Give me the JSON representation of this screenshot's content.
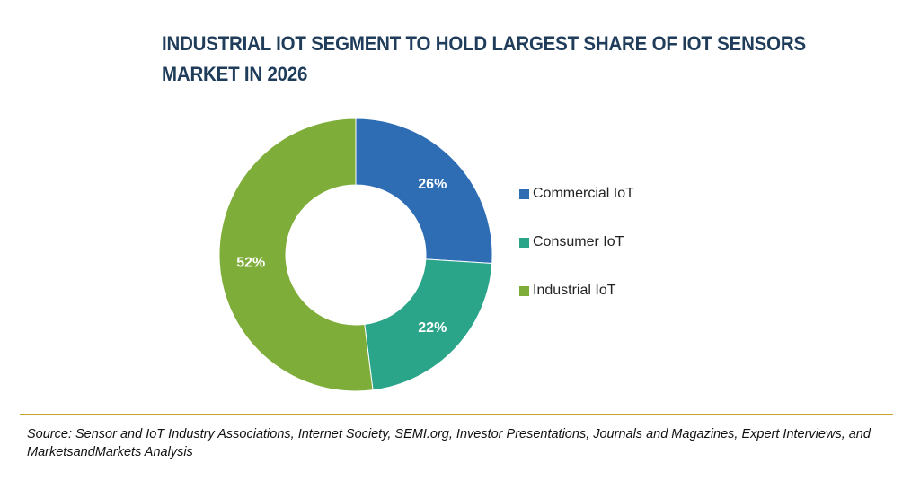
{
  "chart_data": {
    "type": "pie",
    "variant": "donut",
    "title": "INDUSTRIAL IOT SEGMENT TO HOLD LARGEST SHARE OF IOT SENSORS MARKET IN 2026",
    "categories": [
      "Commercial IoT",
      "Consumer IoT",
      "Industrial IoT"
    ],
    "values": [
      26,
      22,
      52
    ],
    "data_labels": [
      "26%",
      "22%",
      "52%"
    ],
    "colors": [
      "#2e6db4",
      "#2ba58a",
      "#7fad3a"
    ],
    "legend_position": "right"
  },
  "source_text": "Source: Sensor and IoT Industry Associations, Internet Society, SEMI.org, Investor Presentations, Journals and Magazines, Expert Interviews, and MarketsandMarkets Analysis",
  "colors": {
    "title": "#1f3c5a",
    "divider": "#c9a227"
  }
}
